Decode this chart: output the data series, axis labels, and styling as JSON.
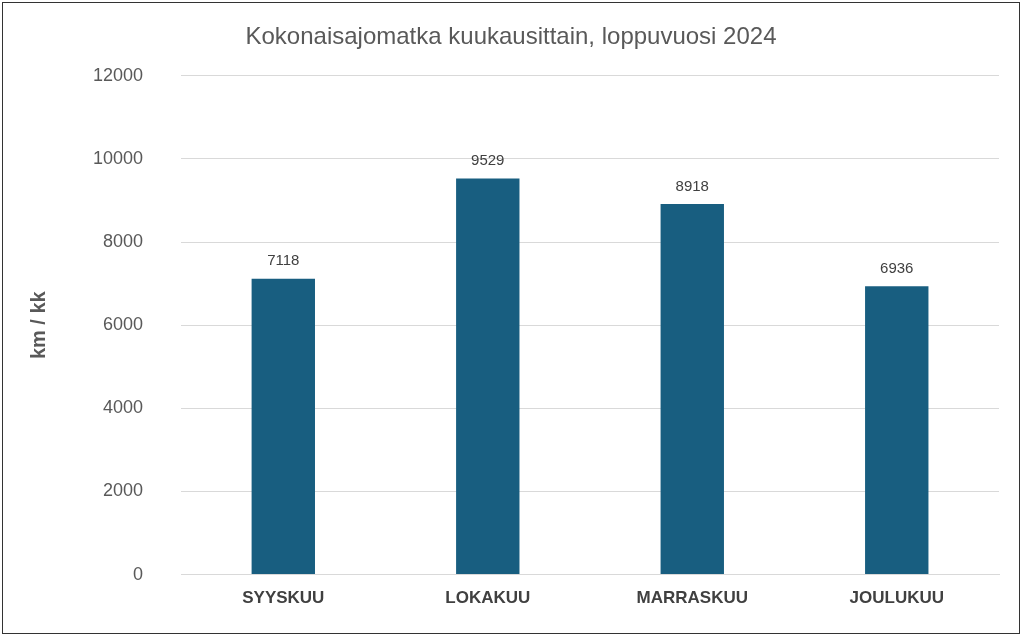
{
  "chart_data": {
    "type": "bar",
    "title": "Kokonaisajomatka kuukausittain, loppuvuosi 2024",
    "ylabel": "km / kk",
    "categories": [
      "SYYSKUU",
      "LOKAKUU",
      "MARRASKUU",
      "JOULUKUU"
    ],
    "values": [
      7118,
      9529,
      8918,
      6936
    ],
    "color": "#185e80",
    "ylim": [
      0,
      12000
    ],
    "yticks": [
      0,
      2000,
      4000,
      6000,
      8000,
      10000,
      12000
    ],
    "grid": "y",
    "legend": false,
    "data_labels": true
  }
}
